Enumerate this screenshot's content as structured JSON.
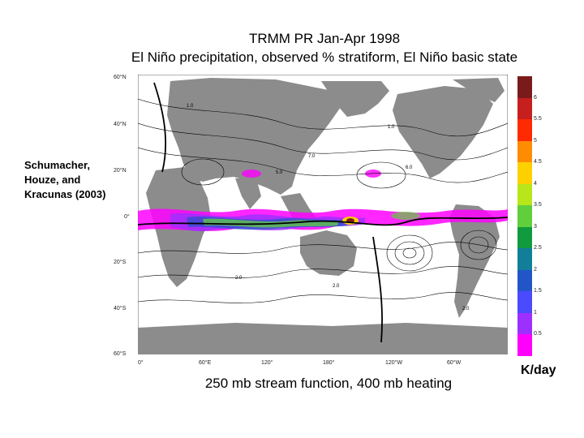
{
  "title_line1": "TRMM  PR Jan-Apr 1998",
  "title_line2": "El Niño precipitation, observed % stratiform, El Niño basic state",
  "attribution": [
    "Schumacher,",
    "Houze, and",
    "Kracunas (2003)"
  ],
  "caption": "250 mb stream function, 400 mb heating",
  "units": "K/day",
  "lat_labels": [
    "60°N",
    "40°N",
    "20°N",
    "0°",
    "20°S",
    "40°S",
    "60°S"
  ],
  "lon_labels": [
    "0°",
    "60°E",
    "120°",
    "180°",
    "120°W",
    "60°W"
  ],
  "contour_labels": [
    "1.0",
    "7.0",
    "5.0",
    "6.0",
    "2.0",
    "2.0",
    "1.0",
    "2.0"
  ],
  "colorbar": {
    "ticks": [
      "6",
      "5.5",
      "5",
      "4.5",
      "4",
      "3.5",
      "3",
      "2.5",
      "2",
      "1.5",
      "1",
      "0.5"
    ],
    "colors": [
      "#7a1b1b",
      "#c71e1e",
      "#ff2a00",
      "#ff8c00",
      "#ffd000",
      "#b8e61a",
      "#5fcf3c",
      "#119b3f",
      "#117f9a",
      "#2256c8",
      "#4a4aff",
      "#9b30ff",
      "#ff00ff"
    ]
  }
}
